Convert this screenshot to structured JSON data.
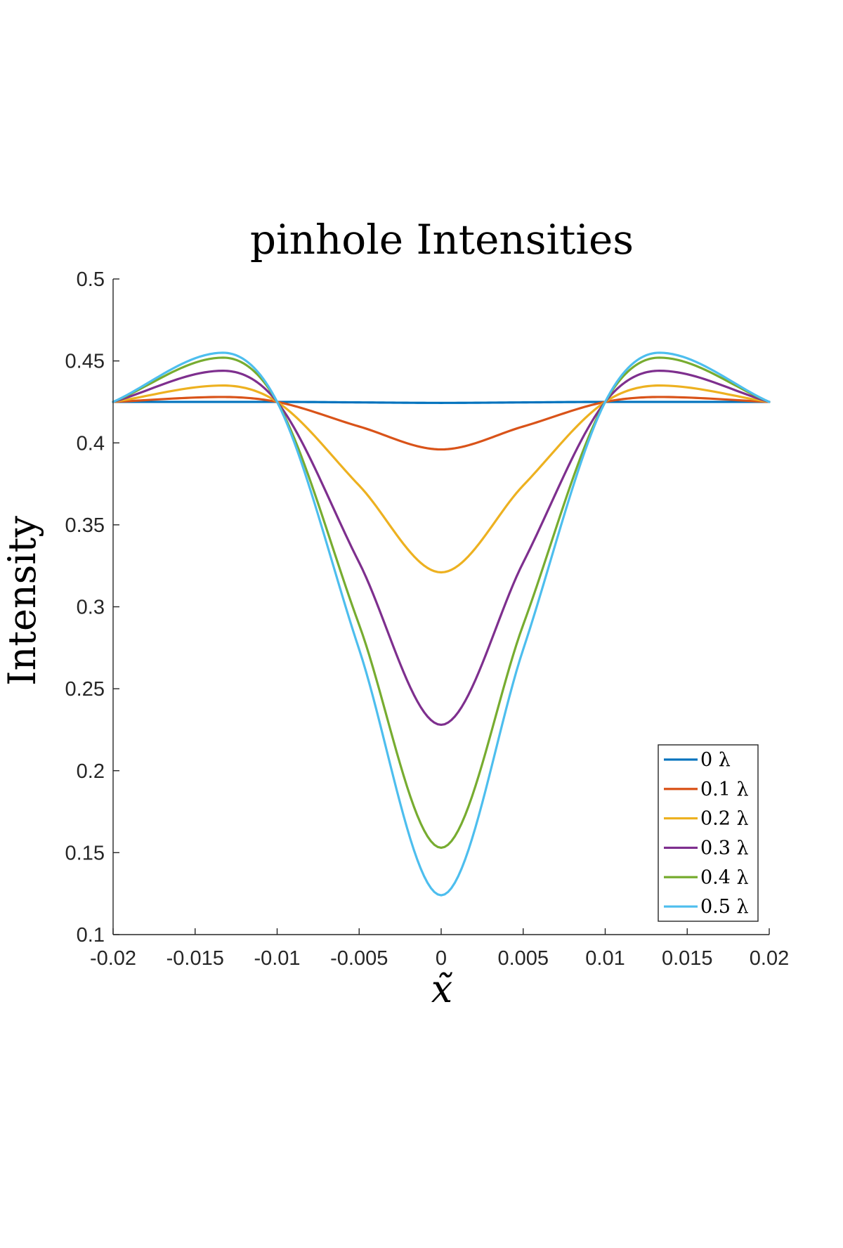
{
  "chart_data": {
    "type": "line",
    "title": "pinhole Intensities",
    "xlabel": "x̃",
    "ylabel": "Intensity",
    "xlim": [
      -0.02,
      0.02
    ],
    "ylim": [
      0.1,
      0.5
    ],
    "xticks": [
      -0.02,
      -0.015,
      -0.01,
      -0.005,
      0,
      0.005,
      0.01,
      0.015,
      0.02
    ],
    "xtick_labels": [
      "-0.02",
      "-0.015",
      "-0.01",
      "-0.005",
      "0",
      "0.005",
      "0.01",
      "0.015",
      "0.02"
    ],
    "yticks": [
      0.1,
      0.15,
      0.2,
      0.25,
      0.3,
      0.35,
      0.4,
      0.45,
      0.5
    ],
    "ytick_labels": [
      "0.1",
      "0.15",
      "0.2",
      "0.25",
      "0.3",
      "0.35",
      "0.4",
      "0.45",
      "0.5"
    ],
    "grid": false,
    "legend_position": "bottom-right",
    "series": [
      {
        "name": "0 λ",
        "color": "#0072BD",
        "x": [
          -0.02,
          -0.0133,
          -0.01,
          -0.005,
          0,
          0.005,
          0.01,
          0.0133,
          0.02
        ],
        "y": [
          0.425,
          0.425,
          0.425,
          0.4247,
          0.4244,
          0.4247,
          0.425,
          0.425,
          0.425
        ]
      },
      {
        "name": "0.1 λ",
        "color": "#D95319",
        "x": [
          -0.02,
          -0.0133,
          -0.01,
          -0.005,
          0,
          0.005,
          0.01,
          0.0133,
          0.02
        ],
        "y": [
          0.425,
          0.428,
          0.425,
          0.41,
          0.396,
          0.41,
          0.425,
          0.428,
          0.425
        ]
      },
      {
        "name": "0.2 λ",
        "color": "#EDB120",
        "x": [
          -0.02,
          -0.0133,
          -0.01,
          -0.005,
          0,
          0.005,
          0.01,
          0.0133,
          0.02
        ],
        "y": [
          0.425,
          0.435,
          0.425,
          0.374,
          0.321,
          0.374,
          0.425,
          0.435,
          0.425
        ]
      },
      {
        "name": "0.3 λ",
        "color": "#7E2F8E",
        "x": [
          -0.02,
          -0.0133,
          -0.01,
          -0.005,
          0,
          0.005,
          0.01,
          0.0133,
          0.02
        ],
        "y": [
          0.425,
          0.444,
          0.425,
          0.327,
          0.228,
          0.327,
          0.425,
          0.444,
          0.425
        ]
      },
      {
        "name": "0.4 λ",
        "color": "#77AC30",
        "x": [
          -0.02,
          -0.0133,
          -0.01,
          -0.005,
          0,
          0.005,
          0.01,
          0.0133,
          0.02
        ],
        "y": [
          0.425,
          0.452,
          0.425,
          0.289,
          0.153,
          0.289,
          0.425,
          0.452,
          0.425
        ]
      },
      {
        "name": "0.5 λ",
        "color": "#4DBEEE",
        "x": [
          -0.02,
          -0.0133,
          -0.01,
          -0.005,
          0,
          0.005,
          0.01,
          0.0133,
          0.02
        ],
        "y": [
          0.425,
          0.455,
          0.425,
          0.274,
          0.124,
          0.274,
          0.425,
          0.455,
          0.425
        ]
      }
    ]
  }
}
